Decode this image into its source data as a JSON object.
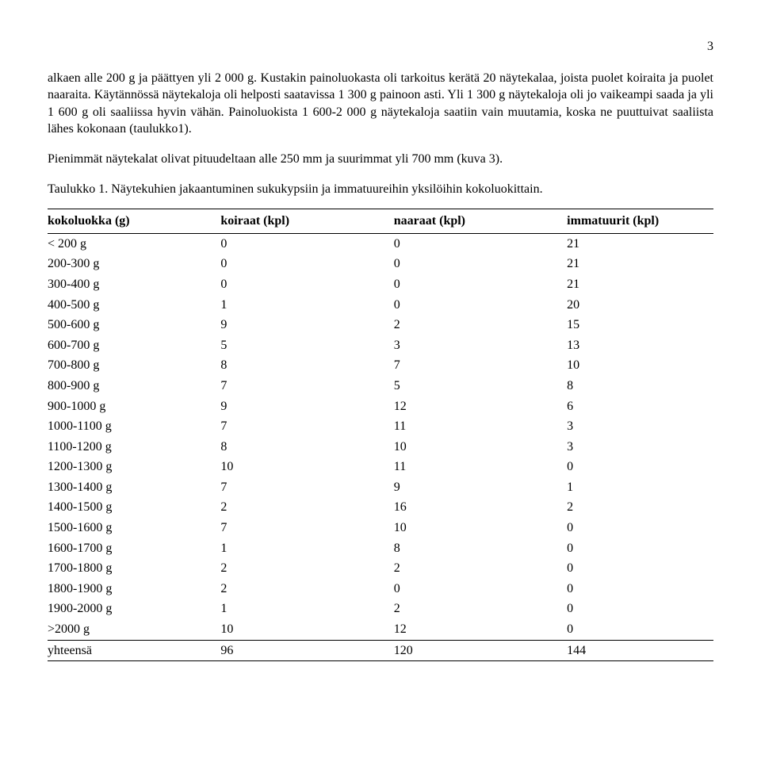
{
  "page_number": "3",
  "paragraph_1": "alkaen alle 200 g ja päättyen yli 2 000 g. Kustakin painoluokasta oli tarkoitus kerätä 20 näytekalaa, joista puolet koiraita ja puolet naaraita. Käytännössä näytekaloja oli helposti saatavissa 1 300 g painoon asti. Yli 1 300 g näytekaloja oli jo vaikeampi saada ja yli 1 600 g oli saaliissa hyvin vähän. Painoluokista 1 600-2 000 g näytekaloja saatiin vain muutamia, koska ne puuttuivat saaliista lähes kokonaan (taulukko1).",
  "paragraph_2": "Pienimmät näytekalat olivat pituudeltaan alle 250 mm ja suurimmat yli 700 mm (kuva 3).",
  "caption": "Taulukko 1. Näytekuhien jakaantuminen sukukypsiin ja immatuureihin yksilöihin kokoluokittain.",
  "table": {
    "headers": [
      "kokoluokka (g)",
      "koiraat (kpl)",
      "naaraat (kpl)",
      "immatuurit (kpl)"
    ],
    "rows": [
      [
        "< 200 g",
        "0",
        "0",
        "21"
      ],
      [
        "200-300 g",
        "0",
        "0",
        "21"
      ],
      [
        "300-400 g",
        "0",
        "0",
        "21"
      ],
      [
        "400-500 g",
        "1",
        "0",
        "20"
      ],
      [
        "500-600 g",
        "9",
        "2",
        "15"
      ],
      [
        "600-700 g",
        "5",
        "3",
        "13"
      ],
      [
        "700-800 g",
        "8",
        "7",
        "10"
      ],
      [
        "800-900 g",
        "7",
        "5",
        "8"
      ],
      [
        "900-1000 g",
        "9",
        "12",
        "6"
      ],
      [
        "1000-1100 g",
        "7",
        "11",
        "3"
      ],
      [
        "1100-1200 g",
        "8",
        "10",
        "3"
      ],
      [
        "1200-1300 g",
        "10",
        "11",
        "0"
      ],
      [
        "1300-1400 g",
        "7",
        "9",
        "1"
      ],
      [
        "1400-1500 g",
        "2",
        "16",
        "2"
      ],
      [
        "1500-1600 g",
        "7",
        "10",
        "0"
      ],
      [
        "1600-1700 g",
        "1",
        "8",
        "0"
      ],
      [
        "1700-1800 g",
        "2",
        "2",
        "0"
      ],
      [
        "1800-1900 g",
        "2",
        "0",
        "0"
      ],
      [
        "1900-2000 g",
        "1",
        "2",
        "0"
      ],
      [
        ">2000 g",
        "10",
        "12",
        "0"
      ]
    ],
    "footer": [
      "yhteensä",
      "96",
      "120",
      "144"
    ]
  }
}
